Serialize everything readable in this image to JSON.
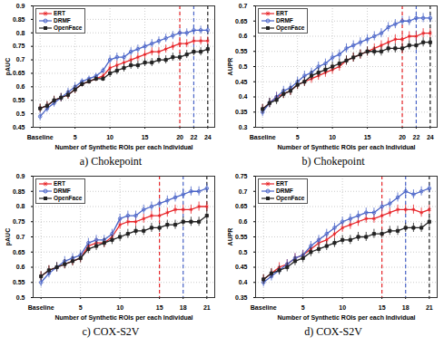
{
  "chart_data": [
    {
      "type": "line",
      "title": "a) Chokepoint",
      "x_label": "Number of Synthetic ROIs per each Individual",
      "y_label": "pAUC",
      "x": [
        0,
        1,
        2,
        3,
        4,
        5,
        6,
        7,
        8,
        9,
        10,
        11,
        12,
        13,
        14,
        15,
        16,
        17,
        18,
        19,
        20,
        21,
        22,
        23,
        24
      ],
      "xlim": [
        -1,
        25
      ],
      "xticks": [
        {
          "value": 0,
          "label": "Baseline"
        },
        5,
        10,
        15,
        20,
        22,
        24
      ],
      "ylim": [
        0.45,
        0.9
      ],
      "yticks": [
        0.45,
        0.5,
        0.55,
        0.6,
        0.65,
        0.7,
        0.75,
        0.8,
        0.85,
        0.9
      ],
      "grid": true,
      "legend": "upper left",
      "vlines": [
        {
          "x": 20,
          "color": "#e8262a"
        },
        {
          "x": 22,
          "color": "#4a64c8"
        },
        {
          "x": 24,
          "color": "#222222"
        }
      ],
      "series": [
        {
          "name": "ERT",
          "color": "#e8262a",
          "marker": "asterisk",
          "values": [
            0.52,
            0.53,
            0.55,
            0.56,
            0.57,
            0.59,
            0.61,
            0.62,
            0.63,
            0.64,
            0.67,
            0.68,
            0.69,
            0.7,
            0.71,
            0.72,
            0.73,
            0.73,
            0.74,
            0.75,
            0.76,
            0.76,
            0.77,
            0.77,
            0.77
          ],
          "errors": [
            0.015,
            0.015,
            0.015,
            0.015,
            0.015,
            0.015,
            0.01,
            0.01,
            0.01,
            0.01,
            0.015,
            0.015,
            0.015,
            0.015,
            0.015,
            0.015,
            0.015,
            0.015,
            0.015,
            0.015,
            0.015,
            0.015,
            0.015,
            0.015,
            0.015
          ]
        },
        {
          "name": "DRMF",
          "color": "#4a64c8",
          "marker": "circle",
          "values": [
            0.49,
            0.52,
            0.54,
            0.56,
            0.58,
            0.6,
            0.62,
            0.63,
            0.64,
            0.66,
            0.7,
            0.71,
            0.71,
            0.73,
            0.74,
            0.75,
            0.76,
            0.77,
            0.78,
            0.79,
            0.8,
            0.8,
            0.81,
            0.81,
            0.81
          ],
          "errors": [
            0.015,
            0.015,
            0.015,
            0.015,
            0.015,
            0.015,
            0.01,
            0.01,
            0.01,
            0.01,
            0.015,
            0.015,
            0.015,
            0.015,
            0.015,
            0.015,
            0.015,
            0.015,
            0.015,
            0.015,
            0.015,
            0.015,
            0.015,
            0.015,
            0.015
          ]
        },
        {
          "name": "OpenFace",
          "color": "#222222",
          "marker": "square",
          "values": [
            0.52,
            0.53,
            0.55,
            0.56,
            0.57,
            0.59,
            0.61,
            0.62,
            0.63,
            0.63,
            0.65,
            0.66,
            0.67,
            0.68,
            0.68,
            0.69,
            0.69,
            0.7,
            0.7,
            0.71,
            0.71,
            0.72,
            0.73,
            0.73,
            0.74
          ],
          "errors": [
            0.015,
            0.015,
            0.015,
            0.015,
            0.015,
            0.015,
            0.01,
            0.01,
            0.01,
            0.01,
            0.015,
            0.015,
            0.015,
            0.015,
            0.015,
            0.015,
            0.015,
            0.015,
            0.015,
            0.015,
            0.015,
            0.015,
            0.015,
            0.015,
            0.015
          ]
        }
      ]
    },
    {
      "type": "line",
      "title": "b) Chokepoint",
      "x_label": "Number of Synthetic ROIs per each Individual",
      "y_label": "AUPR",
      "x": [
        0,
        1,
        2,
        3,
        4,
        5,
        6,
        7,
        8,
        9,
        10,
        11,
        12,
        13,
        14,
        15,
        16,
        17,
        18,
        19,
        20,
        21,
        22,
        23,
        24
      ],
      "xlim": [
        -1,
        25
      ],
      "xticks": [
        {
          "value": 0,
          "label": "Baseline"
        },
        5,
        10,
        15,
        20,
        22,
        24
      ],
      "ylim": [
        0.3,
        0.7
      ],
      "yticks": [
        0.3,
        0.35,
        0.4,
        0.45,
        0.5,
        0.55,
        0.6,
        0.65,
        0.7
      ],
      "grid": true,
      "legend": "upper left",
      "vlines": [
        {
          "x": 20,
          "color": "#e8262a"
        },
        {
          "x": 22,
          "color": "#4a64c8"
        },
        {
          "x": 24,
          "color": "#222222"
        }
      ],
      "series": [
        {
          "name": "ERT",
          "color": "#e8262a",
          "marker": "asterisk",
          "values": [
            0.36,
            0.38,
            0.4,
            0.41,
            0.42,
            0.44,
            0.45,
            0.46,
            0.47,
            0.48,
            0.49,
            0.5,
            0.52,
            0.53,
            0.54,
            0.55,
            0.56,
            0.57,
            0.58,
            0.59,
            0.59,
            0.6,
            0.6,
            0.61,
            0.61
          ],
          "errors": [
            0.015,
            0.015,
            0.015,
            0.015,
            0.015,
            0.015,
            0.015,
            0.015,
            0.015,
            0.015,
            0.015,
            0.015,
            0.015,
            0.015,
            0.015,
            0.015,
            0.015,
            0.015,
            0.015,
            0.015,
            0.015,
            0.015,
            0.015,
            0.015,
            0.015
          ]
        },
        {
          "name": "DRMF",
          "color": "#4a64c8",
          "marker": "circle",
          "values": [
            0.35,
            0.38,
            0.4,
            0.42,
            0.43,
            0.45,
            0.47,
            0.48,
            0.5,
            0.51,
            0.53,
            0.54,
            0.56,
            0.57,
            0.58,
            0.59,
            0.6,
            0.61,
            0.63,
            0.64,
            0.65,
            0.65,
            0.66,
            0.66,
            0.66
          ],
          "errors": [
            0.015,
            0.015,
            0.015,
            0.015,
            0.015,
            0.015,
            0.015,
            0.015,
            0.015,
            0.015,
            0.015,
            0.015,
            0.015,
            0.015,
            0.015,
            0.015,
            0.015,
            0.015,
            0.015,
            0.015,
            0.015,
            0.015,
            0.015,
            0.015,
            0.015
          ]
        },
        {
          "name": "OpenFace",
          "color": "#222222",
          "marker": "square",
          "values": [
            0.36,
            0.38,
            0.39,
            0.41,
            0.42,
            0.44,
            0.45,
            0.47,
            0.48,
            0.49,
            0.5,
            0.51,
            0.52,
            0.53,
            0.54,
            0.55,
            0.55,
            0.55,
            0.56,
            0.56,
            0.56,
            0.57,
            0.57,
            0.58,
            0.58
          ],
          "errors": [
            0.015,
            0.015,
            0.015,
            0.015,
            0.015,
            0.015,
            0.015,
            0.015,
            0.015,
            0.015,
            0.015,
            0.015,
            0.015,
            0.015,
            0.015,
            0.015,
            0.015,
            0.015,
            0.015,
            0.015,
            0.015,
            0.015,
            0.015,
            0.015,
            0.015
          ]
        }
      ]
    },
    {
      "type": "line",
      "title": "c) COX-S2V",
      "x_label": "Number of Synthetic ROIs per each Individual",
      "y_label": "pAUC",
      "x": [
        0,
        1,
        2,
        3,
        4,
        5,
        6,
        7,
        8,
        9,
        10,
        11,
        12,
        13,
        14,
        15,
        16,
        17,
        18,
        19,
        20,
        21
      ],
      "xlim": [
        -1,
        22
      ],
      "xticks": [
        {
          "value": 0,
          "label": "Baseline"
        },
        5,
        10,
        15,
        18,
        21
      ],
      "ylim": [
        0.5,
        0.9
      ],
      "yticks": [
        0.5,
        0.55,
        0.6,
        0.65,
        0.7,
        0.75,
        0.8,
        0.85,
        0.9
      ],
      "grid": true,
      "legend": "upper left",
      "vlines": [
        {
          "x": 15,
          "color": "#e8262a"
        },
        {
          "x": 18,
          "color": "#4a64c8"
        },
        {
          "x": 21,
          "color": "#222222"
        }
      ],
      "series": [
        {
          "name": "ERT",
          "color": "#e8262a",
          "marker": "asterisk",
          "values": [
            0.57,
            0.59,
            0.6,
            0.61,
            0.62,
            0.63,
            0.67,
            0.68,
            0.68,
            0.7,
            0.74,
            0.75,
            0.75,
            0.76,
            0.77,
            0.77,
            0.78,
            0.79,
            0.79,
            0.79,
            0.8,
            0.8
          ],
          "errors": [
            0.015,
            0.015,
            0.015,
            0.015,
            0.015,
            0.015,
            0.015,
            0.015,
            0.015,
            0.015,
            0.015,
            0.015,
            0.015,
            0.015,
            0.015,
            0.015,
            0.015,
            0.015,
            0.015,
            0.015,
            0.015,
            0.015
          ]
        },
        {
          "name": "DRMF",
          "color": "#4a64c8",
          "marker": "circle",
          "values": [
            0.55,
            0.58,
            0.6,
            0.62,
            0.63,
            0.64,
            0.68,
            0.69,
            0.69,
            0.71,
            0.76,
            0.77,
            0.77,
            0.79,
            0.8,
            0.81,
            0.82,
            0.83,
            0.84,
            0.85,
            0.85,
            0.86
          ],
          "errors": [
            0.015,
            0.015,
            0.015,
            0.015,
            0.015,
            0.015,
            0.015,
            0.015,
            0.015,
            0.015,
            0.015,
            0.015,
            0.015,
            0.015,
            0.015,
            0.015,
            0.015,
            0.015,
            0.015,
            0.015,
            0.015,
            0.015
          ]
        },
        {
          "name": "OpenFace",
          "color": "#222222",
          "marker": "square",
          "values": [
            0.57,
            0.59,
            0.6,
            0.61,
            0.62,
            0.63,
            0.66,
            0.67,
            0.68,
            0.69,
            0.7,
            0.71,
            0.72,
            0.72,
            0.73,
            0.73,
            0.74,
            0.74,
            0.75,
            0.75,
            0.75,
            0.77
          ],
          "errors": [
            0.015,
            0.015,
            0.015,
            0.015,
            0.015,
            0.015,
            0.015,
            0.015,
            0.015,
            0.015,
            0.015,
            0.015,
            0.015,
            0.015,
            0.015,
            0.015,
            0.015,
            0.015,
            0.015,
            0.015,
            0.015,
            0.015
          ]
        }
      ]
    },
    {
      "type": "line",
      "title": "d) COX-S2V",
      "x_label": "Number of Synthetic ROIs per each Individual",
      "y_label": "AUPR",
      "x": [
        0,
        1,
        2,
        3,
        4,
        5,
        6,
        7,
        8,
        9,
        10,
        11,
        12,
        13,
        14,
        15,
        16,
        17,
        18,
        19,
        20,
        21
      ],
      "xlim": [
        -1,
        22
      ],
      "xticks": [
        {
          "value": 0,
          "label": "Baseline"
        },
        5,
        10,
        15,
        18,
        21
      ],
      "ylim": [
        0.35,
        0.75
      ],
      "yticks": [
        0.35,
        0.4,
        0.45,
        0.5,
        0.55,
        0.6,
        0.65,
        0.7,
        0.75
      ],
      "grid": true,
      "legend": "upper left",
      "vlines": [
        {
          "x": 15,
          "color": "#e8262a"
        },
        {
          "x": 18,
          "color": "#4a64c8"
        },
        {
          "x": 21,
          "color": "#222222"
        }
      ],
      "series": [
        {
          "name": "ERT",
          "color": "#e8262a",
          "marker": "asterisk",
          "values": [
            0.41,
            0.43,
            0.45,
            0.46,
            0.48,
            0.49,
            0.51,
            0.53,
            0.54,
            0.56,
            0.58,
            0.59,
            0.6,
            0.61,
            0.61,
            0.62,
            0.63,
            0.64,
            0.64,
            0.64,
            0.63,
            0.64
          ],
          "errors": [
            0.015,
            0.015,
            0.015,
            0.015,
            0.015,
            0.015,
            0.015,
            0.015,
            0.015,
            0.015,
            0.015,
            0.015,
            0.015,
            0.015,
            0.015,
            0.015,
            0.015,
            0.015,
            0.015,
            0.015,
            0.015,
            0.015
          ]
        },
        {
          "name": "DRMF",
          "color": "#4a64c8",
          "marker": "circle",
          "values": [
            0.4,
            0.42,
            0.44,
            0.46,
            0.48,
            0.49,
            0.52,
            0.54,
            0.56,
            0.58,
            0.6,
            0.61,
            0.62,
            0.63,
            0.63,
            0.65,
            0.66,
            0.68,
            0.7,
            0.69,
            0.7,
            0.71
          ],
          "errors": [
            0.015,
            0.015,
            0.015,
            0.015,
            0.015,
            0.015,
            0.015,
            0.015,
            0.015,
            0.015,
            0.015,
            0.015,
            0.015,
            0.015,
            0.015,
            0.015,
            0.015,
            0.015,
            0.015,
            0.015,
            0.015,
            0.015
          ]
        },
        {
          "name": "OpenFace",
          "color": "#222222",
          "marker": "square",
          "values": [
            0.41,
            0.43,
            0.44,
            0.45,
            0.47,
            0.48,
            0.5,
            0.51,
            0.52,
            0.53,
            0.54,
            0.54,
            0.55,
            0.55,
            0.56,
            0.56,
            0.57,
            0.57,
            0.58,
            0.58,
            0.58,
            0.6
          ],
          "errors": [
            0.015,
            0.015,
            0.015,
            0.015,
            0.015,
            0.015,
            0.015,
            0.015,
            0.015,
            0.015,
            0.015,
            0.015,
            0.015,
            0.015,
            0.015,
            0.015,
            0.015,
            0.015,
            0.015,
            0.015,
            0.015,
            0.015
          ]
        }
      ]
    }
  ]
}
